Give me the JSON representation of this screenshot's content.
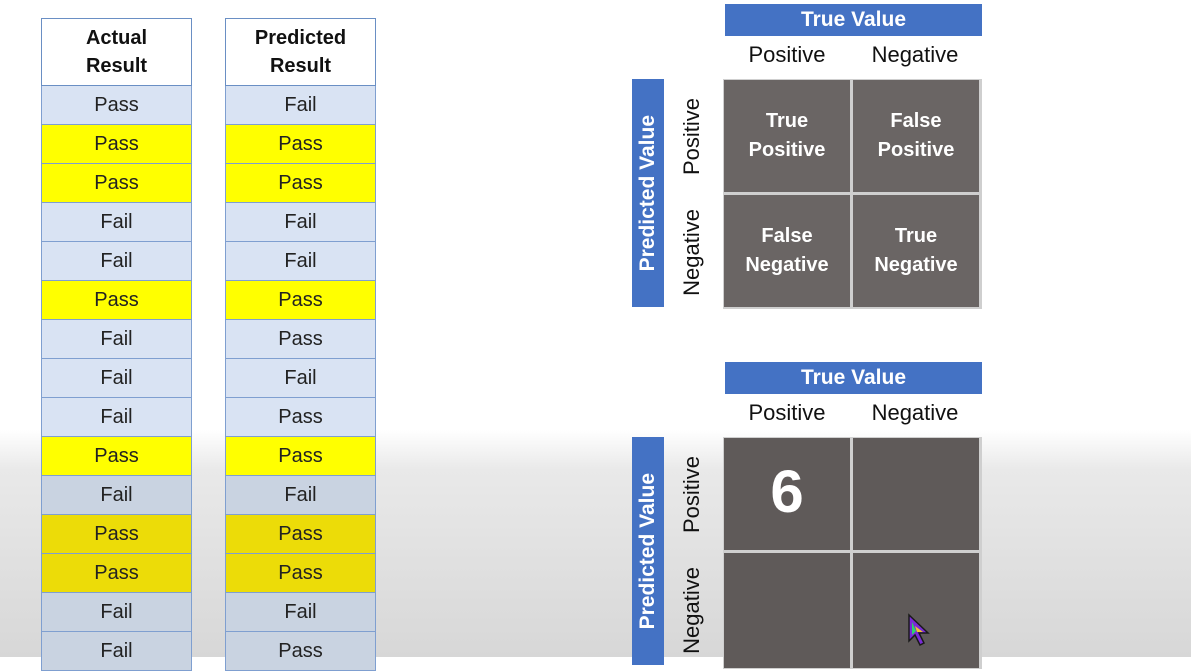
{
  "tables": {
    "actual": {
      "header": "Actual\nResult",
      "rows": [
        "Pass",
        "Pass",
        "Pass",
        "Fail",
        "Fail",
        "Pass",
        "Fail",
        "Fail",
        "Fail",
        "Pass",
        "Fail",
        "Pass",
        "Pass",
        "Fail",
        "Fail"
      ]
    },
    "predicted": {
      "header": "Predicted\nResult",
      "rows": [
        "Fail",
        "Pass",
        "Pass",
        "Fail",
        "Fail",
        "Pass",
        "Pass",
        "Fail",
        "Pass",
        "Pass",
        "Fail",
        "Pass",
        "Pass",
        "Fail",
        "Pass"
      ]
    },
    "highlighted_rows": [
      1,
      2,
      5,
      9,
      11,
      12
    ],
    "colors": {
      "blue": "#d9e3f3",
      "yellow": "#ffff00",
      "border": "#7f9fd0"
    }
  },
  "matrix_top": {
    "true_value_label": "True Value",
    "predicted_value_label": "Predicted Value",
    "col_positive": "Positive",
    "col_negative": "Negative",
    "row_positive": "Positive",
    "row_negative": "Negative",
    "cells": {
      "tp": "True\nPositive",
      "fp": "False\nPositive",
      "fn": "False\nNegative",
      "tn": "True\nNegative"
    }
  },
  "matrix_bottom": {
    "true_value_label": "True Value",
    "predicted_value_label": "Predicted Value",
    "col_positive": "Positive",
    "col_negative": "Negative",
    "row_positive": "Positive",
    "row_negative": "Negative",
    "cells": {
      "tp": "6",
      "fp": "",
      "fn": "",
      "tn": ""
    }
  },
  "accent_color": "#4472c4",
  "cell_color": "#6a6564",
  "cursor_icon": "pointer-cursor-icon"
}
